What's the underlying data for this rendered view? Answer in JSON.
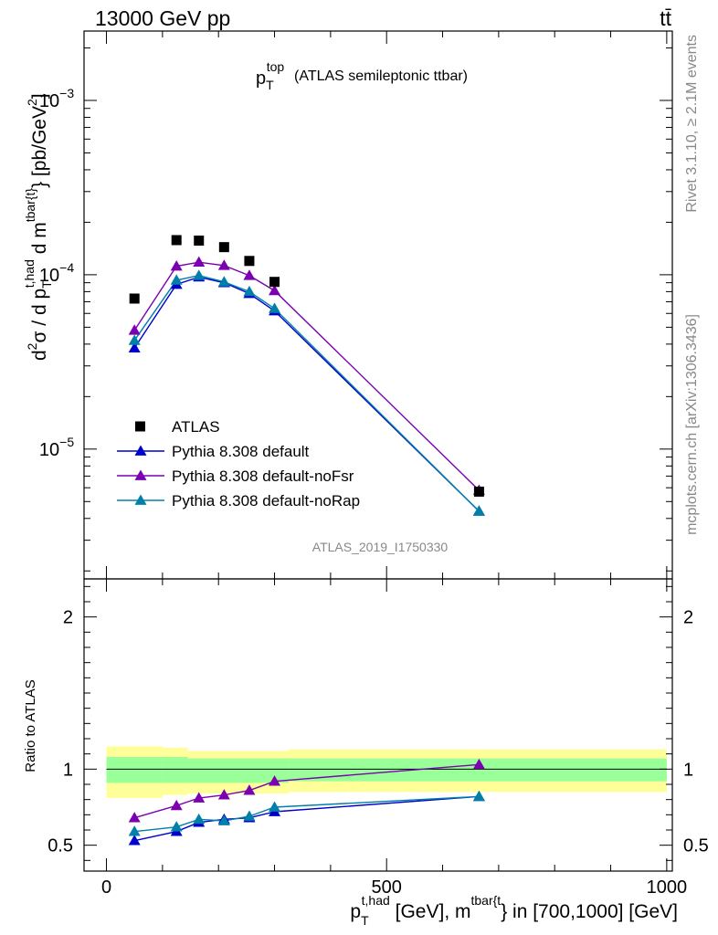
{
  "header": {
    "left": "13000 GeV pp",
    "right": "tt̄"
  },
  "side_labels": {
    "rivet": "Rivet 3.1.10, ≥ 2.1M events",
    "mcplots": "mcplots.cern.ch [arXiv:1306.3436]"
  },
  "chart_data": [
    {
      "type": "line",
      "panel": "main",
      "title": "p_T^top (ATLAS semileptonic ttbar)",
      "title_main": "p",
      "title_sub": "T",
      "title_sup": "top",
      "title_rest": "(ATLAS semileptonic ttbar)",
      "ylabel": "d²σ / d p_T^{t,had} d m^{tbar{t}} [pb/GeV²]",
      "ylabel_parts": {
        "a": "d",
        "a_sup": "2",
        "b": "σ / d p",
        "b_sub": "T",
        "b_sup": "t,had",
        "c": " d m",
        "c_sup": "tbar{t}",
        "d": "} [pb/GeV",
        "d_sup": "2",
        "e": "]"
      },
      "yscale": "log",
      "ylim": [
        1.8e-06,
        0.0025
      ],
      "xlim": [
        -40,
        1010
      ],
      "y_ticks": [
        {
          "v": 0.001,
          "base": "10",
          "exp": "−3"
        },
        {
          "v": 0.0001,
          "base": "10",
          "exp": "−4"
        },
        {
          "v": 1e-05,
          "base": "10",
          "exp": "−5"
        }
      ],
      "watermark": "ATLAS_2019_I1750330",
      "legend_position": "lower-left",
      "x": [
        50,
        125,
        165,
        210,
        255,
        300,
        665
      ],
      "series": [
        {
          "name": "ATLAS",
          "marker": "square",
          "color": "#000000",
          "values": [
            7.3e-05,
            0.000158,
            0.000157,
            0.000144,
            0.00012,
            9.1e-05,
            5.7e-06
          ]
        },
        {
          "name": "Pythia 8.308 default",
          "marker": "triangle",
          "color": "#0000cc",
          "values": [
            3.8e-05,
            8.8e-05,
            9.7e-05,
            9e-05,
            7.8e-05,
            6.2e-05,
            4.4e-06
          ]
        },
        {
          "name": "Pythia 8.308 default-noFsr",
          "marker": "triangle",
          "color": "#7a00b0",
          "values": [
            4.8e-05,
            0.000112,
            0.000118,
            0.000113,
            9.9e-05,
            8.1e-05,
            5.8e-06
          ]
        },
        {
          "name": "Pythia 8.308 default-noRap",
          "marker": "triangle",
          "color": "#0080a8",
          "values": [
            4.2e-05,
            9.3e-05,
            9.9e-05,
            9.1e-05,
            8e-05,
            6.4e-05,
            4.4e-06
          ]
        }
      ]
    },
    {
      "type": "line",
      "panel": "ratio",
      "ylabel": "Ratio to ATLAS",
      "ylim": [
        0.33,
        2.25
      ],
      "xlim": [
        -40,
        1010
      ],
      "y_ticks": [
        {
          "v": 0.5,
          "label": "0.5"
        },
        {
          "v": 1,
          "label": "1"
        },
        {
          "v": 2,
          "label": "2"
        }
      ],
      "x_ticks": [
        {
          "v": 0,
          "label": "0"
        },
        {
          "v": 500,
          "label": "500"
        },
        {
          "v": 1000,
          "label": "1000"
        }
      ],
      "xlabel_parts": {
        "a": "p",
        "a_sub": "T",
        "a_sup": "t,had",
        "b": " [GeV], m",
        "b_sup": "tbar{t",
        "c": "} in [700,1000] [GeV]"
      },
      "bands": [
        {
          "x0": 0,
          "x1": 100,
          "inner": [
            0.91,
            1.08
          ],
          "outer": [
            0.81,
            1.15
          ]
        },
        {
          "x0": 100,
          "x1": 145,
          "inner": [
            0.91,
            1.08
          ],
          "outer": [
            0.83,
            1.14
          ]
        },
        {
          "x0": 145,
          "x1": 325,
          "inner": [
            0.91,
            1.07
          ],
          "outer": [
            0.84,
            1.12
          ]
        },
        {
          "x0": 325,
          "x1": 1000,
          "inner": [
            0.92,
            1.07
          ],
          "outer": [
            0.85,
            1.13
          ]
        }
      ],
      "x": [
        50,
        125,
        165,
        210,
        255,
        300,
        665
      ],
      "series": [
        {
          "name": "Pythia 8.308 default",
          "color": "#0000cc",
          "values": [
            0.53,
            0.59,
            0.65,
            0.67,
            0.68,
            0.72,
            0.82
          ]
        },
        {
          "name": "Pythia 8.308 default-noFsr",
          "color": "#7a00b0",
          "values": [
            0.68,
            0.76,
            0.81,
            0.83,
            0.86,
            0.92,
            1.03
          ]
        },
        {
          "name": "Pythia 8.308 default-noRap",
          "color": "#0080a8",
          "values": [
            0.59,
            0.62,
            0.67,
            0.66,
            0.69,
            0.75,
            0.82
          ]
        }
      ]
    }
  ]
}
